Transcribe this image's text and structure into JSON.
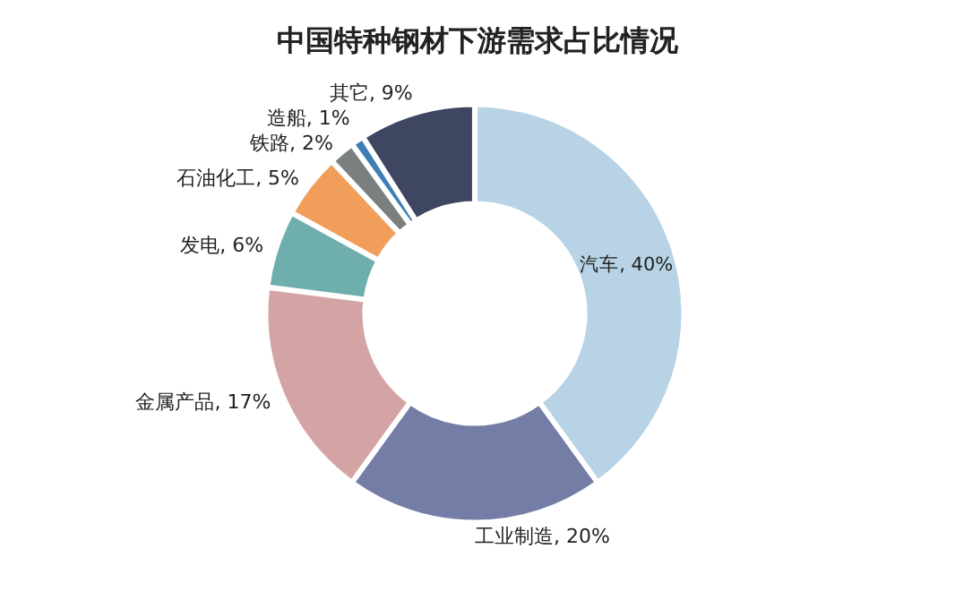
{
  "chart_data": {
    "type": "donut",
    "title": "中国特种钢材下游需求占比情况",
    "categories": [
      "汽车",
      "工业制造",
      "金属产品",
      "发电",
      "石油化工",
      "铁路",
      "造船",
      "其它"
    ],
    "values": [
      40,
      20,
      17,
      6,
      5,
      2,
      1,
      9
    ],
    "value_labels": [
      "40%",
      "20%",
      "17%",
      "6%",
      "5%",
      "2%",
      "1%",
      "9%"
    ],
    "colors": [
      "#b7d3e5",
      "#737da6",
      "#d4a4a4",
      "#6eaead",
      "#f09e5a",
      "#7c7f7f",
      "#3f7fb5",
      "#3e4661"
    ]
  }
}
